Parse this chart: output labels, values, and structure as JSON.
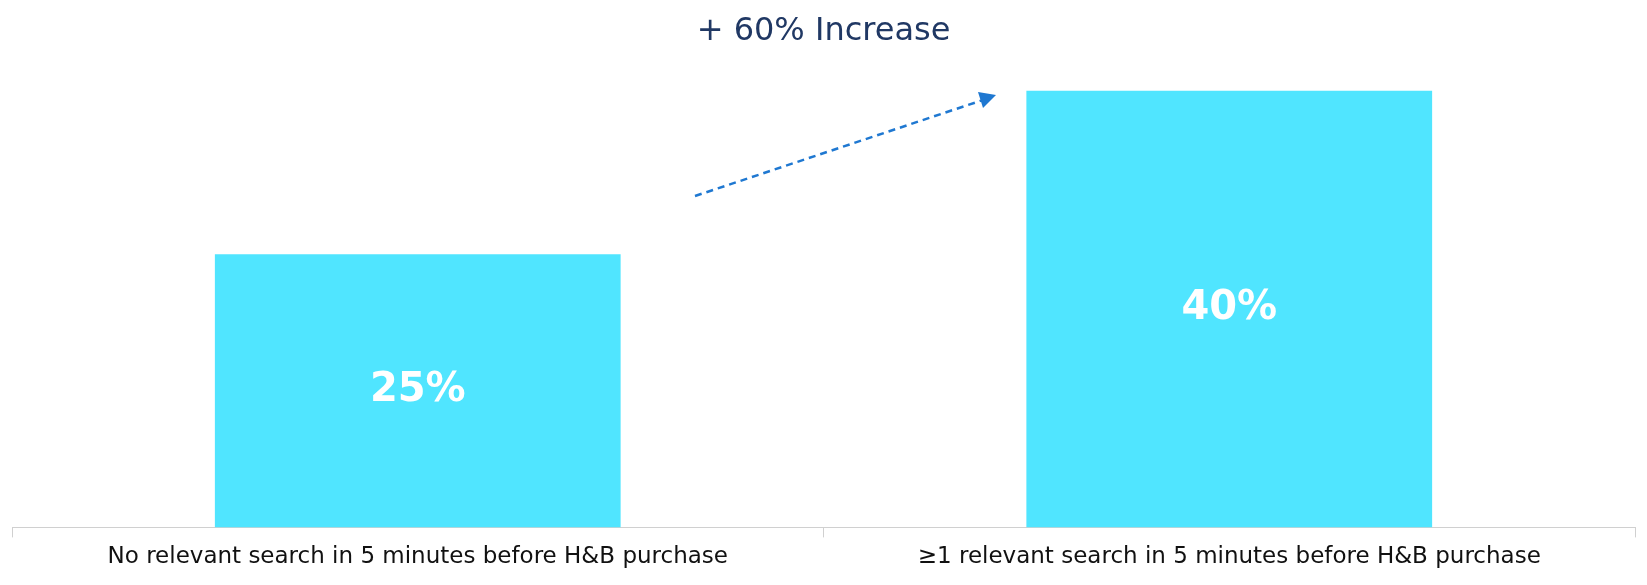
{
  "chart_data": {
    "type": "bar",
    "title": "+ 60% Increase",
    "categories": [
      "No relevant search in 5 minutes before H&B purchase",
      "≥1 relevant search in 5 minutes before H&B purchase"
    ],
    "values": [
      25,
      40
    ],
    "color": "#50e5ff",
    "value_labels": [
      "25%",
      "40%"
    ],
    "legend": false
  }
}
